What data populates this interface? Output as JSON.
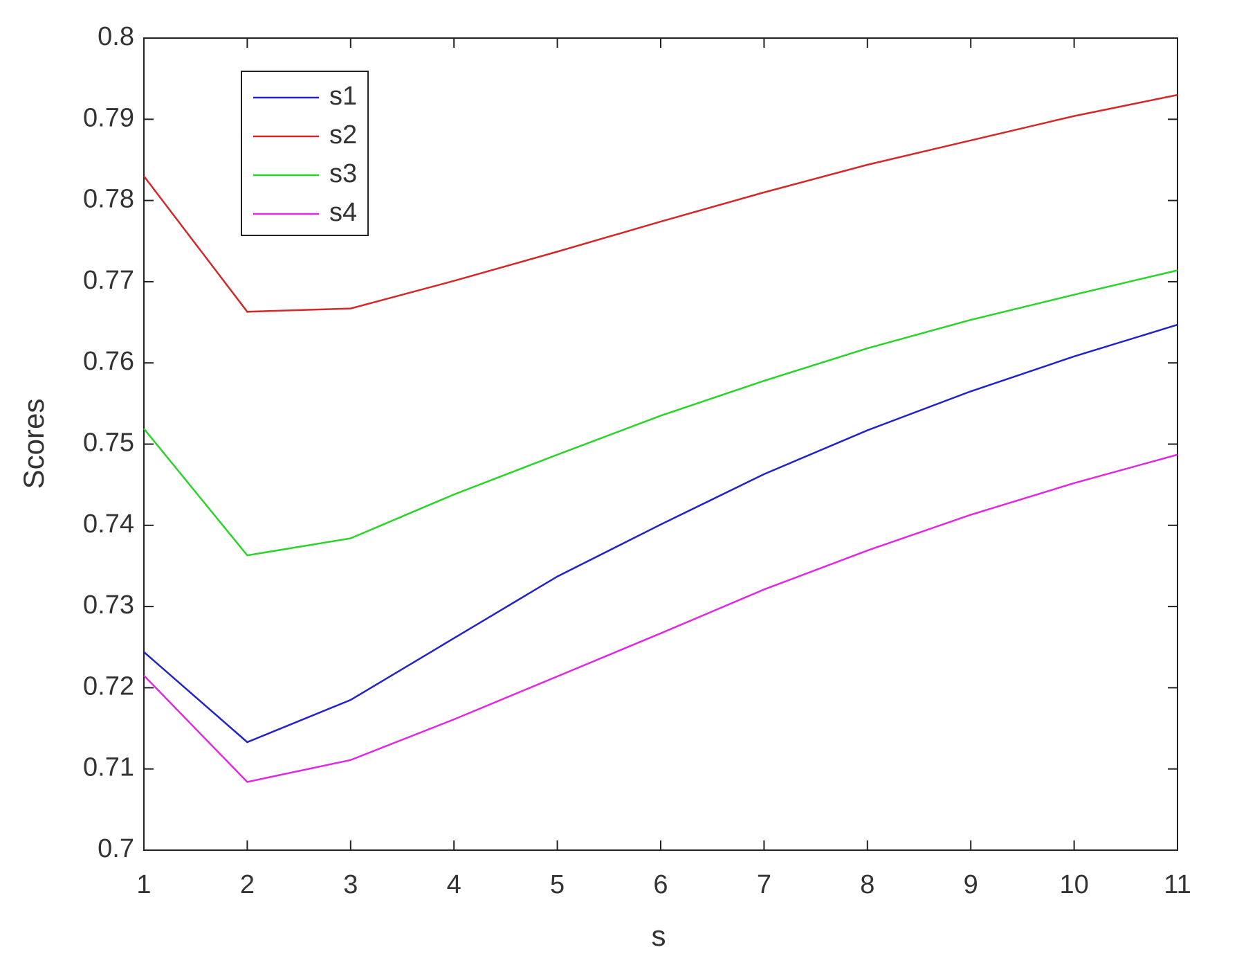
{
  "chart_data": {
    "type": "line",
    "xlabel": "s",
    "ylabel": "Scores",
    "x": [
      1,
      2,
      3,
      4,
      5,
      6,
      7,
      8,
      9,
      10,
      11
    ],
    "series": [
      {
        "name": "s1",
        "color": "#2222c8",
        "values": [
          0.7244,
          0.7133,
          0.7185,
          0.7261,
          0.7337,
          0.7401,
          0.7463,
          0.7517,
          0.7565,
          0.7608,
          0.7647
        ]
      },
      {
        "name": "s2",
        "color": "#d42828",
        "values": [
          0.783,
          0.7663,
          0.7667,
          0.7701,
          0.7737,
          0.7774,
          0.781,
          0.7844,
          0.7874,
          0.7904,
          0.793
        ]
      },
      {
        "name": "s3",
        "color": "#28d428",
        "values": [
          0.7519,
          0.7363,
          0.7384,
          0.7438,
          0.7487,
          0.7535,
          0.7578,
          0.7618,
          0.7653,
          0.7684,
          0.7714
        ]
      },
      {
        "name": "s4",
        "color": "#e028e0",
        "values": [
          0.7215,
          0.7084,
          0.7111,
          0.7161,
          0.7214,
          0.7267,
          0.7321,
          0.7369,
          0.7413,
          0.7452,
          0.7487
        ]
      }
    ],
    "xlim": [
      1,
      11
    ],
    "xticks": [
      1,
      2,
      3,
      4,
      5,
      6,
      7,
      8,
      9,
      10,
      11
    ],
    "ylim": [
      0.7,
      0.8
    ],
    "yticks": [
      0.7,
      0.71,
      0.72,
      0.73,
      0.74,
      0.75,
      0.76,
      0.77,
      0.78,
      0.79,
      0.8
    ],
    "grid": false,
    "legend": "northwest"
  }
}
